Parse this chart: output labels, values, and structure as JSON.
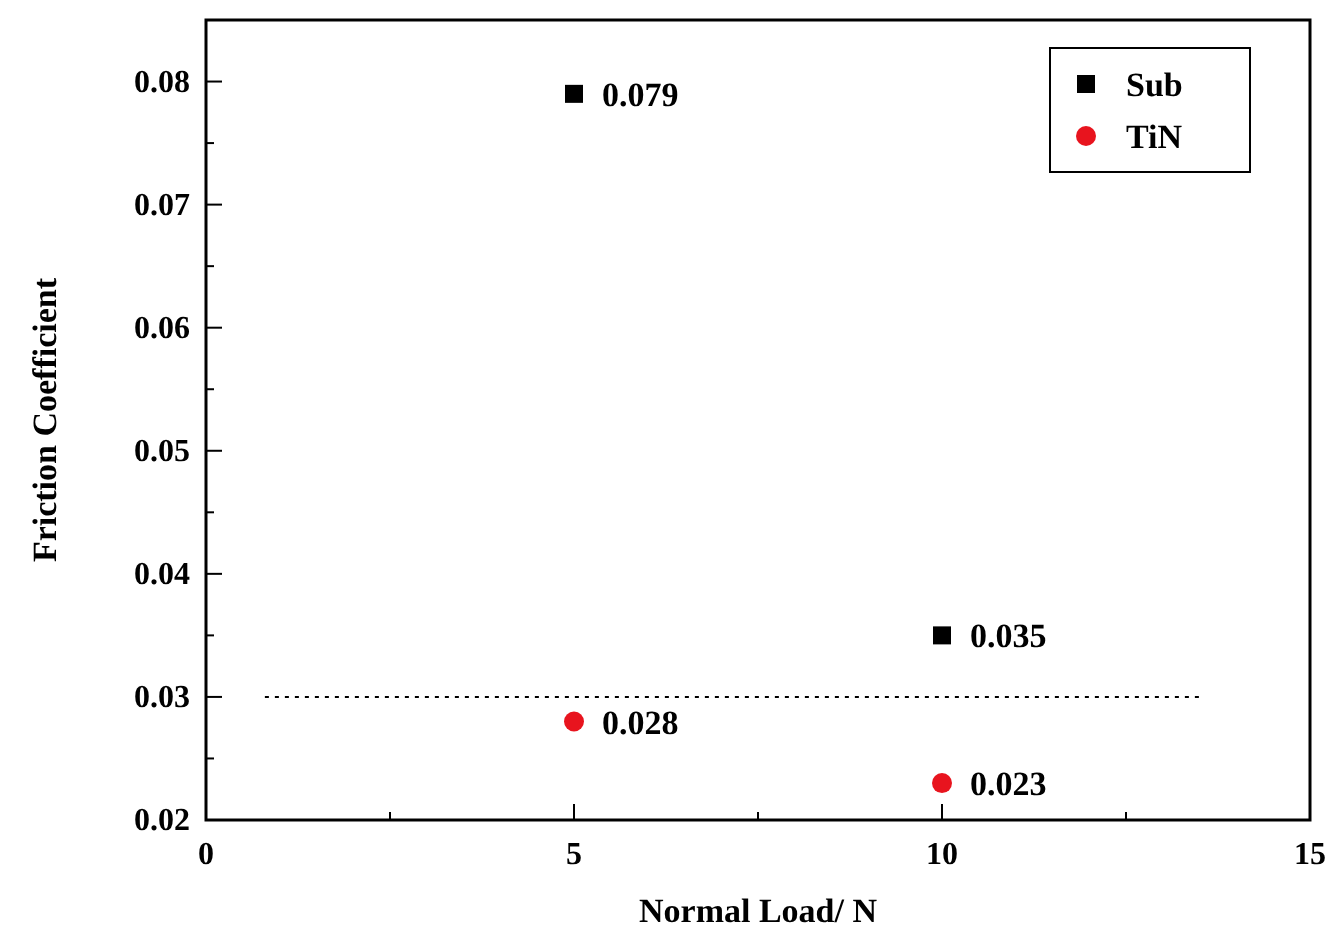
{
  "chart_data": {
    "type": "scatter",
    "xlabel": "Normal Load/ N",
    "ylabel": "Friction Coefficient",
    "x": [
      5,
      10
    ],
    "series": [
      {
        "name": "Sub",
        "color": "#000000",
        "values": [
          0.079,
          0.035
        ],
        "marker": "square"
      },
      {
        "name": "TiN",
        "color": "#e8141e",
        "values": [
          0.028,
          0.023
        ],
        "marker": "circle"
      }
    ],
    "xlim": [
      0,
      15
    ],
    "xticks": [
      0,
      5,
      10,
      15
    ],
    "ylim": [
      0.02,
      0.085
    ],
    "yticks": [
      0.02,
      0.03,
      0.04,
      0.05,
      0.06,
      0.07,
      0.08
    ],
    "ref_lines": [
      {
        "axis": "y",
        "value": 0.03,
        "line_style": "dotted",
        "color": "#000000"
      }
    ],
    "data_labels": true,
    "legend": "top right",
    "grid": false
  }
}
